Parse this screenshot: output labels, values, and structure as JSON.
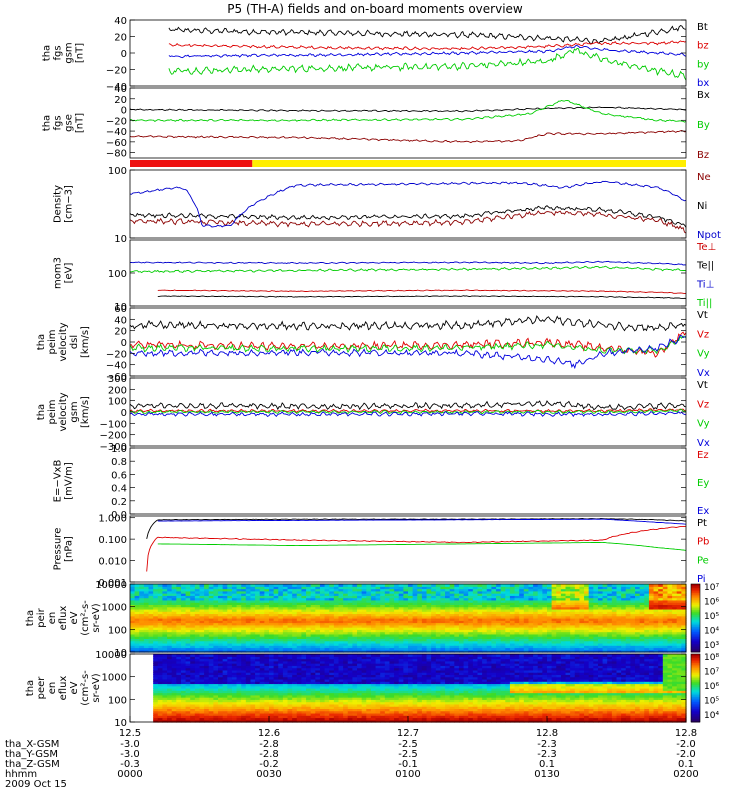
{
  "title": "P5 (TH-A) fields and on-board moments overview",
  "chart_data": {
    "type": "line",
    "title": "P5 (TH-A) fields and on-board moments overview",
    "time_axis": {
      "ticks": [
        "12.5",
        "12.6",
        "12.7",
        "12.8",
        "12.8"
      ],
      "rows": [
        {
          "label": "tha_X-GSM",
          "values": [
            "-3.0",
            "-2.8",
            "-2.5",
            "-2.3",
            "-2.0"
          ]
        },
        {
          "label": "tha_Y-GSM",
          "values": [
            "-3.0",
            "-2.8",
            "-2.5",
            "-2.3",
            "-2.0"
          ]
        },
        {
          "label": "tha_Z-GSM",
          "values": [
            "-0.3",
            "-0.2",
            "-0.1",
            "0.1",
            "0.1"
          ]
        },
        {
          "label": "hhmm",
          "values": [
            "0000",
            "0030",
            "0100",
            "0130",
            "0200"
          ]
        }
      ],
      "date": "2009 Oct 15"
    },
    "panels": [
      {
        "id": "fgs-gsm",
        "ylabel": [
          "tha",
          "fgs",
          "gsm",
          "[nT]"
        ],
        "ylim": [
          -40,
          40
        ],
        "yticks": [
          "40",
          "20",
          "0",
          "−20",
          "−40"
        ],
        "legend": [
          {
            "name": "Bt",
            "color": "#000000"
          },
          {
            "name": "bz",
            "color": "#dd0000"
          },
          {
            "name": "by",
            "color": "#00cc00"
          },
          {
            "name": "bx",
            "color": "#0000dd"
          }
        ],
        "series": [
          {
            "name": "Bt",
            "color": "#000000",
            "x": [
              0.07,
              0.2,
              0.4,
              0.6,
              0.75,
              0.85,
              0.95,
              1.0
            ],
            "y": [
              28,
              26,
              24,
              22,
              18,
              14,
              26,
              32
            ],
            "noise": 4
          },
          {
            "name": "bz",
            "color": "#dd0000",
            "x": [
              0.07,
              0.2,
              0.4,
              0.6,
              0.75,
              0.85,
              0.95,
              1.0
            ],
            "y": [
              10,
              8,
              6,
              5,
              8,
              12,
              12,
              14
            ],
            "noise": 2
          },
          {
            "name": "by",
            "color": "#00cc00",
            "x": [
              0.07,
              0.2,
              0.4,
              0.6,
              0.75,
              0.8,
              0.85,
              0.95,
              1.0
            ],
            "y": [
              -22,
              -20,
              -18,
              -16,
              -10,
              4,
              -8,
              -22,
              -28
            ],
            "noise": 5
          },
          {
            "name": "bx",
            "color": "#0000dd",
            "x": [
              0.07,
              0.2,
              0.4,
              0.6,
              0.75,
              0.8,
              0.85,
              0.95,
              1.0
            ],
            "y": [
              -4,
              -3,
              -2,
              0,
              2,
              8,
              4,
              0,
              -2
            ],
            "noise": 2
          }
        ]
      },
      {
        "id": "fgs-gsm-b",
        "ylabel": [
          "tha",
          "fgs",
          "gse",
          "[nT]"
        ],
        "ylim": [
          -90,
          40
        ],
        "yticks": [
          "40",
          "20",
          "0",
          "−20",
          "−40",
          "−60",
          "−80"
        ],
        "legend": [
          {
            "name": "Bx",
            "color": "#000000"
          },
          {
            "name": "By",
            "color": "#00cc00"
          },
          {
            "name": "Bz",
            "color": "#8b0000"
          }
        ],
        "series": [
          {
            "name": "Bx",
            "color": "#000000",
            "x": [
              0.0,
              0.3,
              0.6,
              0.75,
              0.85,
              1.0
            ],
            "y": [
              0,
              -2,
              -3,
              2,
              4,
              0
            ],
            "noise": 1.5
          },
          {
            "name": "By",
            "color": "#00cc00",
            "x": [
              0.0,
              0.3,
              0.6,
              0.72,
              0.78,
              0.85,
              0.95,
              1.0
            ],
            "y": [
              -20,
              -20,
              -18,
              -8,
              18,
              -8,
              -20,
              -22
            ],
            "noise": 2
          },
          {
            "name": "Bz",
            "color": "#8b0000",
            "x": [
              0.0,
              0.3,
              0.6,
              0.7,
              0.75,
              0.85,
              1.0
            ],
            "y": [
              -50,
              -52,
              -60,
              -58,
              -45,
              -45,
              -40
            ],
            "noise": 2
          }
        ]
      },
      {
        "id": "density",
        "ylabel": [
          "Density",
          "[cm−3]"
        ],
        "ylim": [
          10,
          100
        ],
        "scale": "log",
        "yticks": [
          "100",
          "10"
        ],
        "legend": [
          {
            "name": "Ne",
            "color": "#8b0000"
          },
          {
            "name": "Ni",
            "color": "#000000"
          },
          {
            "name": "Npot",
            "color": "#0000cc"
          }
        ],
        "series": [
          {
            "name": "Ne",
            "color": "#8b0000",
            "x": [
              0.0,
              0.3,
              0.6,
              0.75,
              0.85,
              0.95,
              1.0
            ],
            "y": [
              18,
              16,
              17,
              24,
              22,
              18,
              13
            ],
            "noise": 2
          },
          {
            "name": "Ni",
            "color": "#000000",
            "x": [
              0.0,
              0.3,
              0.6,
              0.75,
              0.85,
              0.95,
              1.0
            ],
            "y": [
              22,
              20,
              21,
              28,
              26,
              20,
              15
            ],
            "noise": 2
          },
          {
            "name": "Npot",
            "color": "#0000cc",
            "x": [
              0.0,
              0.09,
              0.1,
              0.13,
              0.18,
              0.3,
              0.5,
              0.7,
              0.78,
              0.85,
              0.95,
              1.0
            ],
            "y": [
              45,
              55,
              52,
              15,
              15,
              60,
              62,
              65,
              55,
              68,
              55,
              35
            ],
            "noise": 2
          }
        ]
      },
      {
        "id": "temperature",
        "ylabel": [
          "mom3",
          "[eV]"
        ],
        "ylim": [
          10,
          1000
        ],
        "scale": "log",
        "yticks": [
          "100",
          "10"
        ],
        "legend": [
          {
            "name": "Te⊥",
            "color": "#cc0000"
          },
          {
            "name": "Te||",
            "color": "#000000"
          },
          {
            "name": "Ti⊥",
            "color": "#0000cc"
          },
          {
            "name": "Ti||",
            "color": "#00cc00"
          }
        ],
        "series": [
          {
            "name": "Ti⊥",
            "color": "#0000cc",
            "x": [
              0.0,
              0.3,
              0.6,
              0.75,
              0.85,
              1.0
            ],
            "y": [
              210,
              200,
              210,
              200,
              220,
              180
            ],
            "noise": 10
          },
          {
            "name": "Ti||",
            "color": "#00cc00",
            "x": [
              0.0,
              0.3,
              0.6,
              0.75,
              0.85,
              1.0
            ],
            "y": [
              110,
              120,
              130,
              140,
              150,
              120
            ],
            "noise": 10
          },
          {
            "name": "Te⊥",
            "color": "#cc0000",
            "x": [
              0.05,
              0.3,
              0.6,
              0.85,
              0.95,
              1.0
            ],
            "y": [
              30,
              28,
              30,
              28,
              26,
              24
            ],
            "noise": 1
          },
          {
            "name": "Te||",
            "color": "#000000",
            "x": [
              0.05,
              0.3,
              0.6,
              0.85,
              0.95,
              1.0
            ],
            "y": [
              20,
              19,
              20,
              19,
              18,
              17
            ],
            "noise": 0.6
          }
        ]
      },
      {
        "id": "velocity-eml",
        "ylabel": [
          "tha",
          "peim",
          "velocity",
          "dsl",
          "[km/s]"
        ],
        "ylim": [
          -60,
          60
        ],
        "yticks": [
          "60",
          "40",
          "20",
          "0",
          "−20",
          "−40",
          "−60"
        ],
        "legend": [
          {
            "name": "Vt",
            "color": "#000000"
          },
          {
            "name": "Vz",
            "color": "#dd0000"
          },
          {
            "name": "Vy",
            "color": "#00cc00"
          },
          {
            "name": "Vx",
            "color": "#0000dd"
          }
        ],
        "series": [
          {
            "name": "Vt",
            "color": "#000000",
            "x": [
              0.0,
              0.3,
              0.6,
              0.75,
              0.85,
              0.95,
              1.0
            ],
            "y": [
              30,
              28,
              30,
              40,
              30,
              25,
              30
            ],
            "noise": 8
          },
          {
            "name": "Vz",
            "color": "#dd0000",
            "x": [
              0.0,
              0.3,
              0.6,
              0.75,
              0.85,
              0.95,
              1.0
            ],
            "y": [
              -5,
              -8,
              -5,
              0,
              -10,
              -20,
              20
            ],
            "noise": 8
          },
          {
            "name": "Vy",
            "color": "#00cc00",
            "x": [
              0.0,
              0.3,
              0.6,
              0.75,
              0.85,
              0.95,
              1.0
            ],
            "y": [
              -10,
              -12,
              -10,
              -5,
              -15,
              -15,
              10
            ],
            "noise": 7
          },
          {
            "name": "Vx",
            "color": "#0000dd",
            "x": [
              0.0,
              0.3,
              0.6,
              0.75,
              0.8,
              0.85,
              0.95,
              1.0
            ],
            "y": [
              -20,
              -18,
              -20,
              -30,
              -40,
              -20,
              -10,
              10
            ],
            "noise": 7
          }
        ]
      },
      {
        "id": "velocity-gsm",
        "ylabel": [
          "tha",
          "peim",
          "velocity",
          "gsm",
          "[km/s]"
        ],
        "ylim": [
          -300,
          300
        ],
        "yticks": [
          "300",
          "200",
          "100",
          "0",
          "−100",
          "−200",
          "−300"
        ],
        "legend": [
          {
            "name": "Vt",
            "color": "#000000"
          },
          {
            "name": "Vz",
            "color": "#dd0000"
          },
          {
            "name": "Vy",
            "color": "#00cc00"
          },
          {
            "name": "Vx",
            "color": "#0000dd"
          }
        ],
        "series": [
          {
            "name": "Vt",
            "color": "#000000",
            "x": [
              0.0,
              0.3,
              0.6,
              0.75,
              0.85,
              1.0
            ],
            "y": [
              60,
              50,
              55,
              80,
              40,
              60
            ],
            "noise": 30
          },
          {
            "name": "Vz",
            "color": "#dd0000",
            "x": [
              0.0,
              0.3,
              0.6,
              0.85,
              1.0
            ],
            "y": [
              10,
              10,
              10,
              10,
              20
            ],
            "noise": 15
          },
          {
            "name": "Vy",
            "color": "#00cc00",
            "x": [
              0.0,
              0.3,
              0.6,
              0.85,
              1.0
            ],
            "y": [
              0,
              0,
              0,
              0,
              10
            ],
            "noise": 15
          },
          {
            "name": "Vx",
            "color": "#0000dd",
            "x": [
              0.0,
              0.3,
              0.6,
              0.85,
              1.0
            ],
            "y": [
              -20,
              -20,
              -15,
              -20,
              -10
            ],
            "noise": 20
          }
        ]
      },
      {
        "id": "efield",
        "ylabel": [
          "E=−VxB",
          "[mV/m]"
        ],
        "ylim": [
          0,
          1
        ],
        "yticks": [
          "1.0",
          "0.8",
          "0.6",
          "0.4",
          "0.2",
          "0.0"
        ],
        "legend": [
          {
            "name": "Ez",
            "color": "#dd0000"
          },
          {
            "name": "Ey",
            "color": "#00cc00"
          },
          {
            "name": "Ex",
            "color": "#0000dd"
          }
        ],
        "series": []
      },
      {
        "id": "pressure",
        "ylabel": [
          "Pressure",
          "[nPa]"
        ],
        "ylim": [
          0.001,
          1.2
        ],
        "scale": "log",
        "yticks": [
          "1.000",
          "0.100",
          "0.010",
          "0.001"
        ],
        "legend": [
          {
            "name": "Pt",
            "color": "#000000"
          },
          {
            "name": "Pb",
            "color": "#dd0000"
          },
          {
            "name": "Pe",
            "color": "#00cc00"
          },
          {
            "name": "Pi",
            "color": "#0000dd"
          }
        ],
        "series": [
          {
            "name": "Pt",
            "color": "#000000",
            "x": [
              0.03,
              0.05,
              0.3,
              0.6,
              0.85,
              0.95,
              1.0
            ],
            "y": [
              0.1,
              0.8,
              0.85,
              0.85,
              0.9,
              0.8,
              0.7
            ],
            "noise": 0.03
          },
          {
            "name": "Pi",
            "color": "#0000dd",
            "x": [
              0.05,
              0.3,
              0.6,
              0.85,
              0.95,
              1.0
            ],
            "y": [
              0.7,
              0.75,
              0.8,
              0.85,
              0.6,
              0.5
            ],
            "noise": 0.02
          },
          {
            "name": "Pb",
            "color": "#dd0000",
            "x": [
              0.03,
              0.05,
              0.3,
              0.6,
              0.85,
              0.95,
              1.0
            ],
            "y": [
              0.003,
              0.12,
              0.09,
              0.07,
              0.09,
              0.3,
              0.4
            ],
            "noise": 0.05
          },
          {
            "name": "Pe",
            "color": "#00cc00",
            "x": [
              0.05,
              0.3,
              0.6,
              0.85,
              0.95,
              1.0
            ],
            "y": [
              0.06,
              0.05,
              0.06,
              0.07,
              0.04,
              0.03
            ],
            "noise": 0.005
          }
        ]
      },
      {
        "id": "peir-spectrogram",
        "type": "heatmap",
        "ylabel": [
          "tha",
          "peir",
          "en",
          "eflux",
          "eV",
          "(cm²-s-",
          "sr-eV)"
        ],
        "ylim": [
          10,
          10000
        ],
        "scale": "log",
        "yticks": [
          "10000",
          "1000",
          "100",
          "10"
        ],
        "colorbar": {
          "labels": [
            "10⁷",
            "10⁶",
            "10⁵",
            "10⁴",
            "10³"
          ],
          "range": [
            3,
            7
          ]
        }
      },
      {
        "id": "peer-spectrogram",
        "type": "heatmap",
        "ylabel": [
          "tha",
          "peer",
          "en",
          "eflux",
          "eV",
          "(cm²-s-",
          "sr-eV)"
        ],
        "ylim": [
          10,
          10000
        ],
        "scale": "log",
        "yticks": [
          "10000",
          "1000",
          "100",
          "10"
        ],
        "colorbar": {
          "labels": [
            "10⁸",
            "10⁷",
            "10⁶",
            "10⁵",
            "10⁴"
          ],
          "range": [
            4,
            8
          ]
        }
      }
    ]
  }
}
